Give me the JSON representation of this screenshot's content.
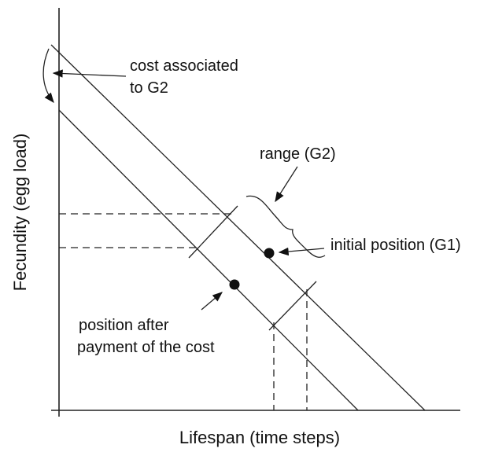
{
  "axes": {
    "y_label": "Fecundity (egg load)",
    "x_label": "Lifespan (time steps)"
  },
  "annotations": {
    "cost": [
      "cost associated",
      "to G2"
    ],
    "range": "range (G2)",
    "initial": "initial position (G1)",
    "after": [
      "position after",
      "payment of the cost"
    ]
  }
}
